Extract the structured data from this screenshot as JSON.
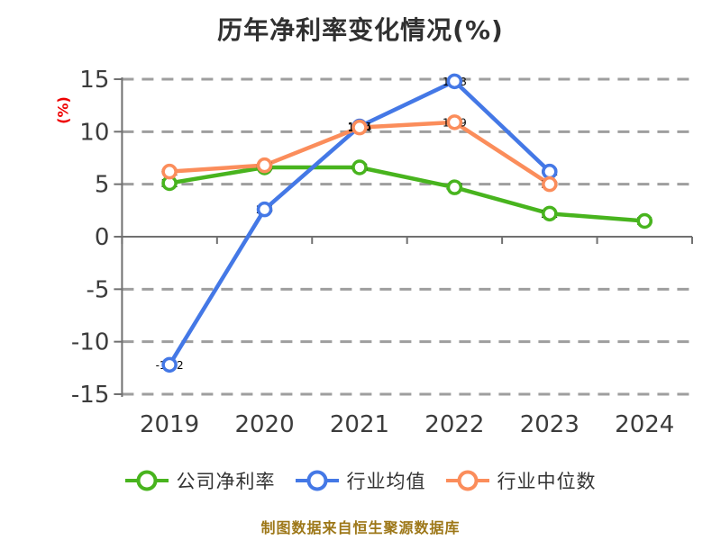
{
  "chart_data": {
    "type": "line",
    "title": "历年净利率变化情况(%)",
    "ylabel": "(%)",
    "source_note": "制图数据来自恒生聚源数据库",
    "categories": [
      "2019",
      "2020",
      "2021",
      "2022",
      "2023",
      "2024"
    ],
    "series": [
      {
        "key": "company-net-margin",
        "name": "公司净利率",
        "color": "#48B41E",
        "values": [
          5.1,
          6.6,
          6.6,
          4.7,
          2.2,
          1.5
        ]
      },
      {
        "key": "industry-mean",
        "name": "行业均值",
        "color": "#4478E6",
        "values": [
          -12.2,
          2.6,
          10.5,
          14.8,
          6.2
        ]
      },
      {
        "key": "industry-median",
        "name": "行业中位数",
        "color": "#FB8D5B",
        "values": [
          6.2,
          6.8,
          10.4,
          10.9,
          5.0
        ]
      }
    ],
    "ylim": [
      -15,
      15
    ],
    "yticks": [
      15,
      10,
      5,
      0,
      -5,
      -10,
      -15
    ],
    "xtick_labels": [
      "2019",
      "2020",
      "2021",
      "2022",
      "2023",
      "2024"
    ],
    "grid": "dashed horizontal",
    "x_axis_position": "zero-line",
    "legend_position": "bottom",
    "point_labels": true,
    "marker": "circle-white-fill"
  },
  "colors": {
    "background": "#ffffff",
    "title": "#303030",
    "ylabel": "#EE0000",
    "grid": "#9E9E9E",
    "axis": "#707070",
    "tick_label": "#3C3C3C",
    "point_label": "#000000",
    "legend_label": "#333333",
    "source_note": "#9D7718",
    "marker_fill": "#FFFFFF"
  }
}
